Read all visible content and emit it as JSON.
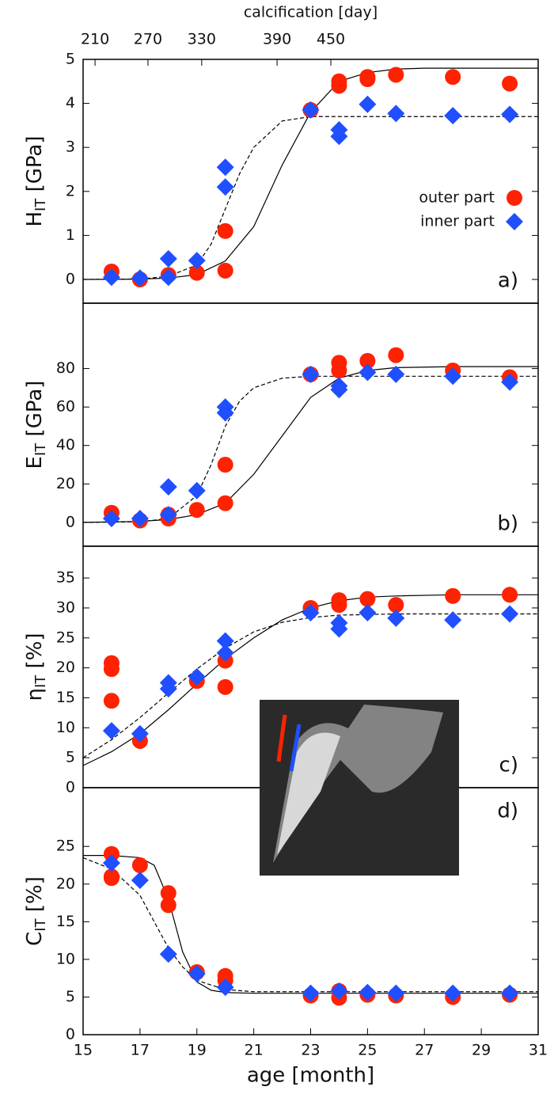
{
  "chart_data": [
    {
      "type": "scatter",
      "ylabel": [
        "H",
        "IT",
        " [GPa]"
      ],
      "annotation": "a)",
      "legend": "upper right",
      "x2label": "calcification [day]",
      "x2ticks": [
        {
          "value": 15.42,
          "label": "210"
        },
        {
          "value": 17.28,
          "label": "270"
        },
        {
          "value": 19.17,
          "label": "330"
        },
        {
          "value": 21.82,
          "label": "390"
        },
        {
          "value": 23.71,
          "label": "450"
        }
      ],
      "xlim": [
        15,
        31
      ],
      "ylim": [
        -0.54,
        5
      ],
      "yticks": [
        0,
        1,
        2,
        3,
        4,
        5
      ],
      "series": [
        {
          "name": "outer part",
          "color": "#ff2200",
          "marker": "circle",
          "x": [
            16,
            17,
            18,
            19,
            20,
            20,
            23,
            24,
            24,
            25,
            25,
            26,
            28,
            30
          ],
          "values": [
            0.18,
            0.0,
            0.1,
            0.15,
            1.1,
            0.2,
            3.85,
            4.4,
            4.5,
            4.55,
            4.6,
            4.65,
            4.6,
            4.45
          ]
        },
        {
          "name": "inner part",
          "color": "#1f4fff",
          "marker": "diamond",
          "x": [
            16,
            17,
            18,
            18,
            19,
            20,
            20,
            23,
            24,
            24,
            25,
            26,
            28,
            30
          ],
          "values": [
            0.05,
            0.03,
            0.05,
            0.47,
            0.43,
            2.1,
            2.55,
            3.85,
            3.25,
            3.4,
            3.98,
            3.77,
            3.72,
            3.75
          ]
        }
      ],
      "fits": [
        {
          "color": "#000000",
          "dashed": false,
          "x": [
            15,
            16,
            17,
            18,
            19,
            20,
            21,
            22,
            23,
            24,
            25,
            26,
            27,
            28,
            31
          ],
          "values": [
            0.0,
            0.002,
            0.008,
            0.03,
            0.11,
            0.42,
            1.2,
            2.6,
            3.8,
            4.5,
            4.7,
            4.78,
            4.8,
            4.8,
            4.8
          ]
        },
        {
          "color": "#000000",
          "dashed": true,
          "x": [
            15,
            17,
            18,
            19,
            19.5,
            20,
            20.5,
            21,
            22,
            23,
            31
          ],
          "values": [
            0.0,
            0.01,
            0.07,
            0.33,
            0.8,
            1.6,
            2.4,
            3.0,
            3.6,
            3.7,
            3.7
          ]
        }
      ]
    },
    {
      "type": "scatter",
      "ylabel": [
        "E",
        "IT",
        " [GPa]"
      ],
      "annotation": "b)",
      "xlim": [
        15,
        31
      ],
      "ylim": [
        -12.4,
        114
      ],
      "yticks": [
        0,
        20,
        40,
        60,
        80
      ],
      "series": [
        {
          "name": "outer part",
          "color": "#ff2200",
          "marker": "circle",
          "x": [
            16,
            17,
            18,
            18,
            19,
            20,
            20,
            23,
            24,
            24,
            25,
            26,
            28,
            30
          ],
          "values": [
            5,
            1,
            4,
            2,
            6.5,
            30,
            10,
            77,
            83,
            79,
            84,
            87,
            79,
            75.5
          ]
        },
        {
          "name": "inner part",
          "color": "#1f4fff",
          "marker": "diamond",
          "x": [
            16,
            17,
            18,
            18,
            19,
            20,
            20,
            23,
            24,
            24,
            25,
            26,
            28,
            30
          ],
          "values": [
            2,
            2,
            18.5,
            4,
            16.5,
            60,
            57,
            77,
            71,
            69,
            78,
            77,
            76,
            73
          ]
        }
      ],
      "fits": [
        {
          "color": "#000000",
          "dashed": false,
          "x": [
            15,
            17,
            18,
            19,
            20,
            21,
            22,
            23,
            24,
            25,
            26,
            28,
            31
          ],
          "values": [
            0,
            0.5,
            1.5,
            4,
            10,
            25,
            45,
            65,
            75,
            79,
            80.5,
            81,
            81
          ]
        },
        {
          "color": "#000000",
          "dashed": true,
          "x": [
            15,
            17,
            18,
            19,
            19.5,
            20,
            20.5,
            21,
            22,
            23,
            31
          ],
          "values": [
            0,
            0.3,
            2,
            14,
            30,
            50,
            63,
            70,
            75,
            76,
            76
          ]
        }
      ]
    },
    {
      "type": "scatter",
      "ylabel": [
        "η",
        "IT",
        " [%]"
      ],
      "annotation": "c)",
      "xlim": [
        15,
        31
      ],
      "ylim": [
        0,
        40.3
      ],
      "yticks": [
        0,
        5,
        10,
        15,
        20,
        25,
        30,
        35
      ],
      "series": [
        {
          "name": "outer part",
          "color": "#ff2200",
          "marker": "circle",
          "x": [
            16,
            16,
            16,
            17,
            19,
            20,
            20,
            23,
            24,
            24,
            25,
            26,
            28,
            30
          ],
          "values": [
            20.8,
            19.8,
            14.5,
            7.8,
            17.8,
            21.2,
            16.8,
            30,
            31.3,
            30.5,
            31.5,
            30.5,
            32,
            32.2
          ]
        },
        {
          "name": "inner part",
          "color": "#1f4fff",
          "marker": "diamond",
          "x": [
            16,
            17,
            18,
            18,
            19,
            20,
            20,
            23,
            24,
            24,
            25,
            26,
            28,
            30
          ],
          "values": [
            9.5,
            9,
            17.5,
            16.5,
            18.5,
            24.5,
            22.5,
            29.2,
            27.5,
            26.5,
            29.2,
            28.3,
            28,
            29
          ]
        }
      ],
      "fits": [
        {
          "color": "#000000",
          "dashed": false,
          "x": [
            15,
            16,
            17,
            18,
            19,
            20,
            21,
            22,
            23,
            24,
            25,
            26,
            28,
            31
          ],
          "values": [
            3.7,
            6,
            9,
            13,
            17.3,
            21.5,
            25,
            28,
            30,
            31.2,
            31.8,
            32,
            32.2,
            32.2
          ]
        },
        {
          "color": "#000000",
          "dashed": true,
          "x": [
            15,
            16,
            17,
            18,
            19,
            20,
            21,
            22,
            23,
            24,
            26,
            31
          ],
          "values": [
            5,
            8,
            11.7,
            15.8,
            19.8,
            23.3,
            26,
            27.6,
            28.4,
            28.8,
            29,
            29
          ]
        }
      ]
    },
    {
      "type": "scatter",
      "ylabel": [
        "C",
        "IT",
        " [%]"
      ],
      "annotation": "d)",
      "xlabel": "age [month]",
      "xlim": [
        15,
        31
      ],
      "xticks": [
        15,
        17,
        19,
        21,
        23,
        25,
        27,
        29,
        31
      ],
      "ylim": [
        0,
        32.8
      ],
      "yticks": [
        0,
        5,
        10,
        15,
        20,
        25
      ],
      "series": [
        {
          "name": "outer part",
          "color": "#ff2200",
          "marker": "circle",
          "x": [
            16,
            16,
            16,
            17,
            18,
            18,
            19,
            20,
            20,
            23,
            24,
            24,
            25,
            26,
            28,
            30
          ],
          "values": [
            24,
            21,
            20.8,
            22.5,
            18.8,
            17.2,
            8.3,
            7.8,
            7.2,
            5.2,
            5.8,
            4.9,
            5.3,
            5.2,
            5,
            5.3
          ]
        },
        {
          "name": "inner part",
          "color": "#1f4fff",
          "marker": "diamond",
          "x": [
            16,
            17,
            18,
            19,
            20,
            23,
            24,
            25,
            26,
            28,
            30
          ],
          "values": [
            22.8,
            20.5,
            10.7,
            8.1,
            6.3,
            5.5,
            5.8,
            5.6,
            5.5,
            5.5,
            5.5
          ]
        }
      ],
      "fits": [
        {
          "color": "#000000",
          "dashed": false,
          "x": [
            15,
            16,
            17,
            17.5,
            18,
            18.5,
            19,
            19.5,
            20,
            21,
            31
          ],
          "values": [
            23.8,
            23.8,
            23.5,
            22.5,
            18,
            11,
            7,
            5.9,
            5.6,
            5.5,
            5.5
          ]
        },
        {
          "color": "#000000",
          "dashed": true,
          "x": [
            15,
            16,
            17,
            17.5,
            18,
            18.5,
            19,
            20,
            21,
            31
          ],
          "values": [
            23.5,
            22,
            18.5,
            15,
            11.5,
            9,
            7.2,
            6,
            5.7,
            5.7
          ]
        }
      ]
    }
  ]
}
